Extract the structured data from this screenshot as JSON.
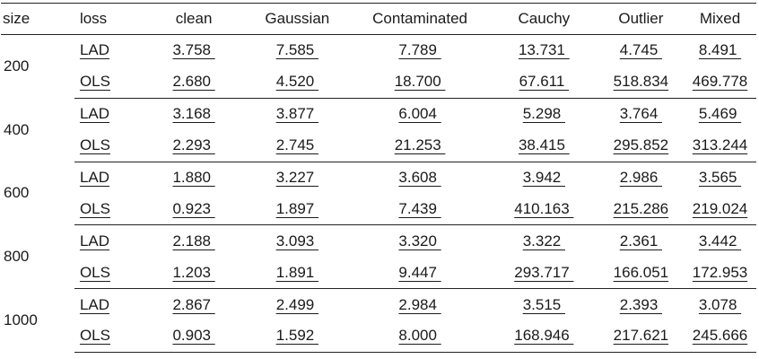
{
  "headers": [
    "size",
    "loss",
    "clean",
    "Gaussian",
    "Contaminated",
    "Cauchy",
    "Outlier",
    "Mixed"
  ],
  "groups": [
    {
      "size": "200",
      "rows": [
        {
          "loss": "LAD",
          "values": [
            "3.758 ",
            "7.585 ",
            "7.789 ",
            "13.731 ",
            "4.745 ",
            "8.491 "
          ]
        },
        {
          "loss": "OLS",
          "values": [
            "2.680 ",
            "4.520 ",
            "18.700 ",
            "67.611 ",
            "518.834",
            "469.778"
          ]
        }
      ]
    },
    {
      "size": "400",
      "rows": [
        {
          "loss": "LAD",
          "values": [
            "3.168 ",
            "3.877 ",
            "6.004 ",
            "5.298 ",
            "3.764 ",
            "5.469 "
          ]
        },
        {
          "loss": "OLS",
          "values": [
            "2.293 ",
            "2.745 ",
            "21.253 ",
            "38.415 ",
            "295.852",
            "313.244"
          ]
        }
      ]
    },
    {
      "size": "600",
      "rows": [
        {
          "loss": "LAD",
          "values": [
            "1.880 ",
            "3.227 ",
            "3.608 ",
            "3.942 ",
            "2.986 ",
            "3.565 "
          ]
        },
        {
          "loss": "OLS",
          "values": [
            "0.923 ",
            "1.897 ",
            "7.439 ",
            "410.163 ",
            "215.286",
            "219.024"
          ]
        }
      ]
    },
    {
      "size": "800",
      "rows": [
        {
          "loss": "LAD",
          "values": [
            "2.188 ",
            "3.093 ",
            "3.320 ",
            "3.322 ",
            "2.361 ",
            "3.442 "
          ]
        },
        {
          "loss": "OLS",
          "values": [
            "1.203 ",
            "1.891 ",
            "9.447 ",
            "293.717 ",
            "166.051",
            "172.953"
          ]
        }
      ]
    },
    {
      "size": "1000",
      "rows": [
        {
          "loss": "LAD",
          "values": [
            "2.867 ",
            "2.499 ",
            "2.984 ",
            "3.515 ",
            "2.393 ",
            "3.078 "
          ]
        },
        {
          "loss": "OLS",
          "values": [
            "0.903 ",
            "1.592 ",
            "8.000 ",
            "168.946 ",
            "217.621",
            "245.666"
          ]
        }
      ]
    }
  ]
}
